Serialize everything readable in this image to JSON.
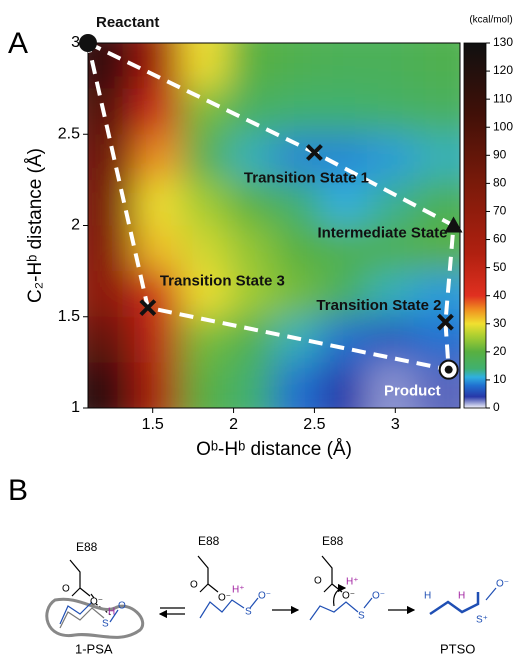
{
  "panels": [
    "A",
    "B"
  ],
  "chart_data": {
    "type": "heatmap",
    "xlabel": "Oᵇ-Hᵇ distance (Å)",
    "ylabel": "C₂-Hᵇ distance (Å)",
    "xlim": [
      1.1,
      3.4
    ],
    "ylim": [
      1,
      3
    ],
    "xticks": [
      1.5,
      2,
      2.5,
      3
    ],
    "yticks": [
      1,
      1.5,
      2,
      2.5,
      3
    ],
    "z": [
      [
        110,
        60,
        30,
        20,
        18,
        17,
        17,
        18
      ],
      [
        95,
        45,
        22,
        16,
        14,
        14,
        15,
        16
      ],
      [
        85,
        35,
        18,
        12,
        9,
        9,
        10,
        12
      ],
      [
        80,
        30,
        25,
        20,
        14,
        11,
        13,
        17
      ],
      [
        75,
        32,
        28,
        24,
        20,
        18,
        18,
        20
      ],
      [
        70,
        45,
        30,
        25,
        22,
        16,
        12,
        10
      ],
      [
        90,
        50,
        22,
        18,
        12,
        8,
        6,
        8
      ],
      [
        115,
        55,
        20,
        14,
        8,
        4,
        2,
        3
      ]
    ],
    "colorscale": [
      {
        "value": 0,
        "color": "#f4f4fc"
      },
      {
        "value": 4,
        "color": "#2838a8"
      },
      {
        "value": 8,
        "color": "#2070d0"
      },
      {
        "value": 11,
        "color": "#30b0e0"
      },
      {
        "value": 14,
        "color": "#40b070"
      },
      {
        "value": 20,
        "color": "#58b040"
      },
      {
        "value": 26,
        "color": "#b0d030"
      },
      {
        "value": 30,
        "color": "#f0e030"
      },
      {
        "value": 35,
        "color": "#f09020"
      },
      {
        "value": 40,
        "color": "#e03020"
      },
      {
        "value": 55,
        "color": "#b02010"
      },
      {
        "value": 80,
        "color": "#7a1a0a"
      },
      {
        "value": 105,
        "color": "#401008"
      },
      {
        "value": 130,
        "color": "#101010"
      }
    ],
    "colorbar": {
      "label": "(kcal/mol)",
      "lim": [
        0,
        130
      ],
      "ticks": [
        0,
        10,
        20,
        30,
        40,
        50,
        60,
        70,
        80,
        90,
        100,
        110,
        120,
        130
      ]
    },
    "path_color": "#ffffff",
    "points": [
      {
        "label": "Reactant",
        "x": 1.1,
        "y": 3.0,
        "marker": "circle"
      },
      {
        "label": "Transition State 1",
        "x": 2.5,
        "y": 2.4,
        "marker": "cross"
      },
      {
        "label": "Intermediate State",
        "x": 3.36,
        "y": 2.0,
        "marker": "triangle"
      },
      {
        "label": "Transition State 2",
        "x": 3.31,
        "y": 1.47,
        "marker": "cross"
      },
      {
        "label": "Product",
        "x": 3.33,
        "y": 1.21,
        "marker": "target"
      },
      {
        "label": "Transition State 3",
        "x": 1.47,
        "y": 1.55,
        "marker": "cross"
      }
    ]
  },
  "scheme": {
    "enzyme": [
      "E88",
      "E88",
      "E88"
    ],
    "atoms": [
      "O",
      "O⁻",
      "H",
      "O",
      "S",
      "O",
      "O⁻",
      "H⁺",
      "S",
      "O⁻",
      "O",
      "O⁻",
      "H⁺",
      "S",
      "O⁻",
      "O⁻",
      "H",
      "H",
      "S⁺"
    ],
    "compounds": [
      "1-PSA",
      "PTSO"
    ]
  }
}
